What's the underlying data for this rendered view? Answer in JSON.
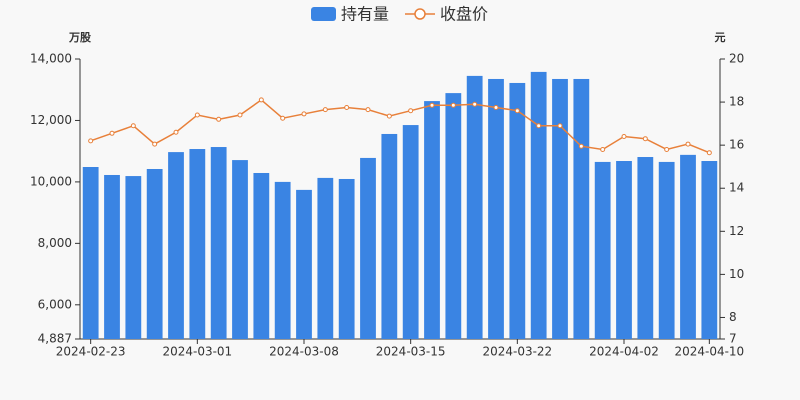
{
  "chart_data": {
    "type": "bar-line",
    "y_label": "万股",
    "y2_label": "元",
    "categories": [
      "2024-02-23",
      null,
      null,
      null,
      null,
      "2024-03-01",
      null,
      null,
      null,
      null,
      "2024-03-08",
      null,
      null,
      null,
      null,
      "2024-03-15",
      null,
      null,
      null,
      null,
      "2024-03-22",
      null,
      null,
      null,
      null,
      "2024-04-02",
      null,
      null,
      null,
      "2024-04-10"
    ],
    "series": [
      {
        "name": "持有量",
        "type": "bar",
        "color": "#3a84e3",
        "values": [
          10485,
          10225,
          10190,
          10420,
          10970,
          11070,
          11135,
          10710,
          10290,
          10000,
          9740,
          10130,
          10095,
          10780,
          11560,
          11850,
          12630,
          12890,
          13450,
          13350,
          13220,
          13580,
          13350,
          13350,
          10650,
          10680,
          10810,
          10650,
          10880,
          10680
        ]
      },
      {
        "name": "收盘价",
        "type": "line",
        "axis": "y2",
        "color": "#e8803a",
        "values": [
          16.2,
          16.55,
          16.9,
          16.05,
          16.6,
          17.4,
          17.2,
          17.4,
          18.1,
          17.25,
          17.45,
          17.65,
          17.75,
          17.65,
          17.35,
          17.6,
          17.85,
          17.85,
          17.9,
          17.75,
          17.6,
          16.9,
          16.9,
          15.95,
          15.8,
          16.4,
          16.3,
          15.8,
          16.05,
          15.65
        ]
      }
    ],
    "ylim": [
      4887,
      14000
    ],
    "yticks": [
      {
        "value": 4887,
        "label": "4,887"
      },
      {
        "value": 6000,
        "label": "6,000"
      },
      {
        "value": 8000,
        "label": "8,000"
      },
      {
        "value": 10000,
        "label": "10,000"
      },
      {
        "value": 12000,
        "label": "12,000"
      },
      {
        "value": 14000,
        "label": "14,000"
      }
    ],
    "y2lim": [
      7,
      20
    ],
    "y2ticks": [
      7,
      8,
      10,
      12,
      14,
      16,
      18,
      20
    ],
    "legend": "top"
  }
}
